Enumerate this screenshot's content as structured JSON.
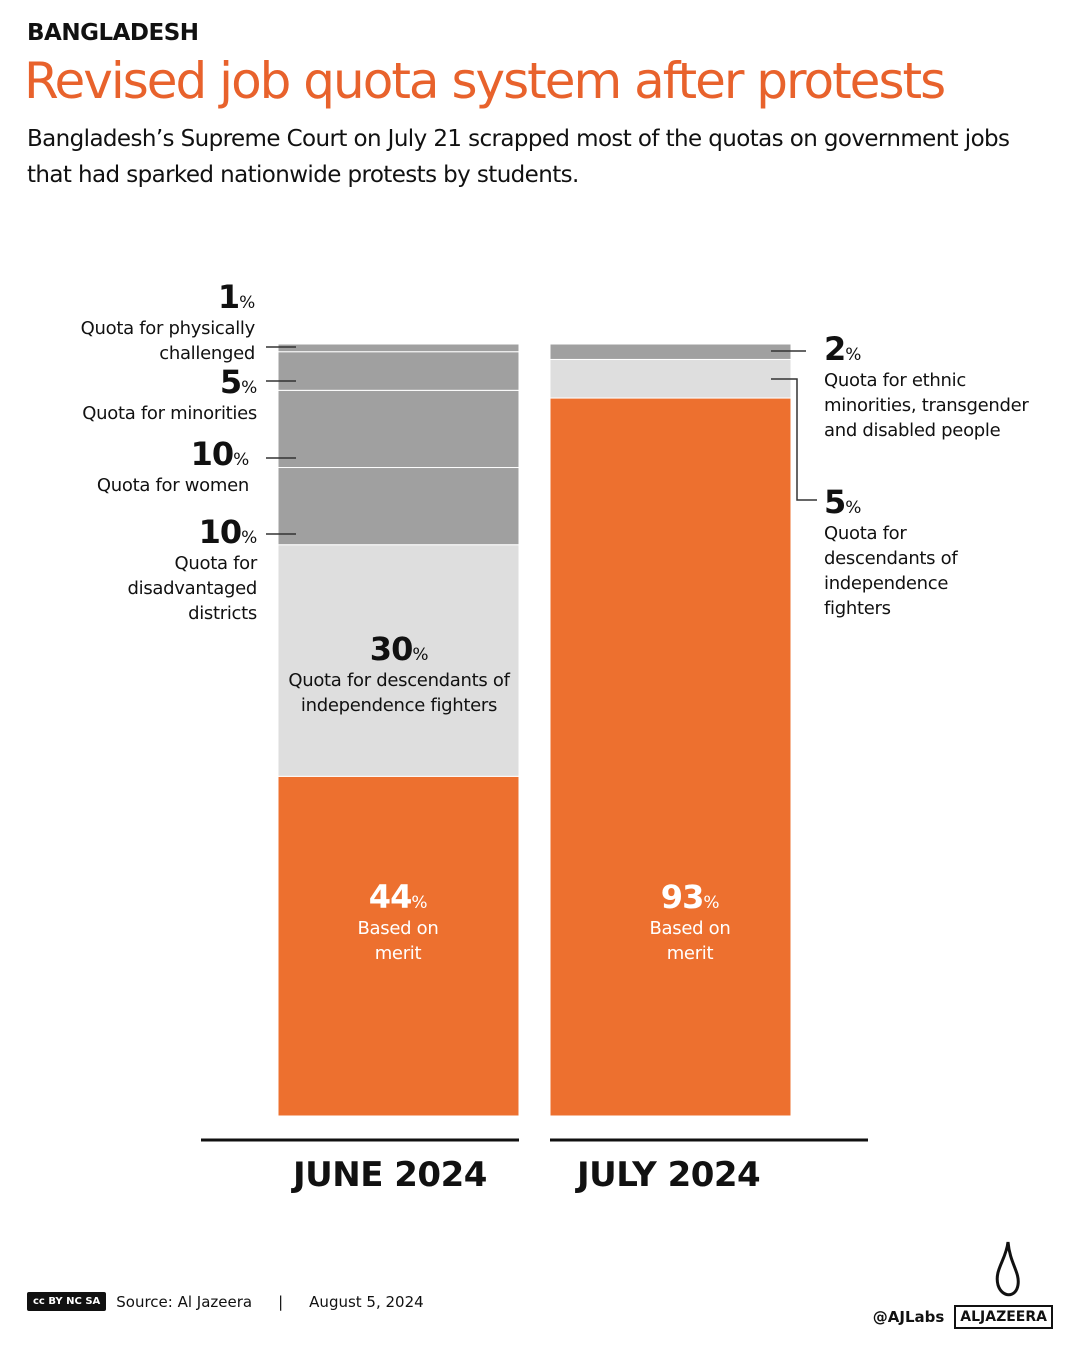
{
  "header": {
    "kicker": "BANGLADESH",
    "title": "Revised job quota system after protests",
    "subtitle": "Bangladesh’s Supreme Court on July 21 scrapped most of the quotas on government jobs that had sparked nationwide protests by students."
  },
  "chart_data": {
    "type": "stacked-bar",
    "categories": [
      "JUNE 2024",
      "JULY 2024"
    ],
    "unit": "%",
    "bars": [
      {
        "category": "JUNE 2024",
        "segments": [
          {
            "value": 44,
            "label": "Based on merit",
            "color": "#ed702f"
          },
          {
            "value": 30,
            "label": "Quota for descendants of independence fighters",
            "color": "#dedede"
          },
          {
            "value": 10,
            "label": "Quota for disadvantaged districts",
            "color": "#a0a0a0"
          },
          {
            "value": 10,
            "label": "Quota for women",
            "color": "#a0a0a0"
          },
          {
            "value": 5,
            "label": "Quota for minorities",
            "color": "#a0a0a0"
          },
          {
            "value": 1,
            "label": "Quota for physically challenged",
            "color": "#a0a0a0"
          }
        ]
      },
      {
        "category": "JULY 2024",
        "segments": [
          {
            "value": 93,
            "label": "Based on merit",
            "color": "#ed702f"
          },
          {
            "value": 5,
            "label": "Quota for descendants of independence fighters",
            "color": "#dedede"
          },
          {
            "value": 2,
            "label": "Quota for ethnic minorities, transgender and disabled people",
            "color": "#a0a0a0"
          }
        ]
      }
    ]
  },
  "footer": {
    "license": "cc BY NC SA",
    "source": "Source:  Al Jazeera",
    "separator": "|",
    "date": "August 5, 2024",
    "handle": "@AJLabs",
    "brand": "ALJAZEERA"
  }
}
